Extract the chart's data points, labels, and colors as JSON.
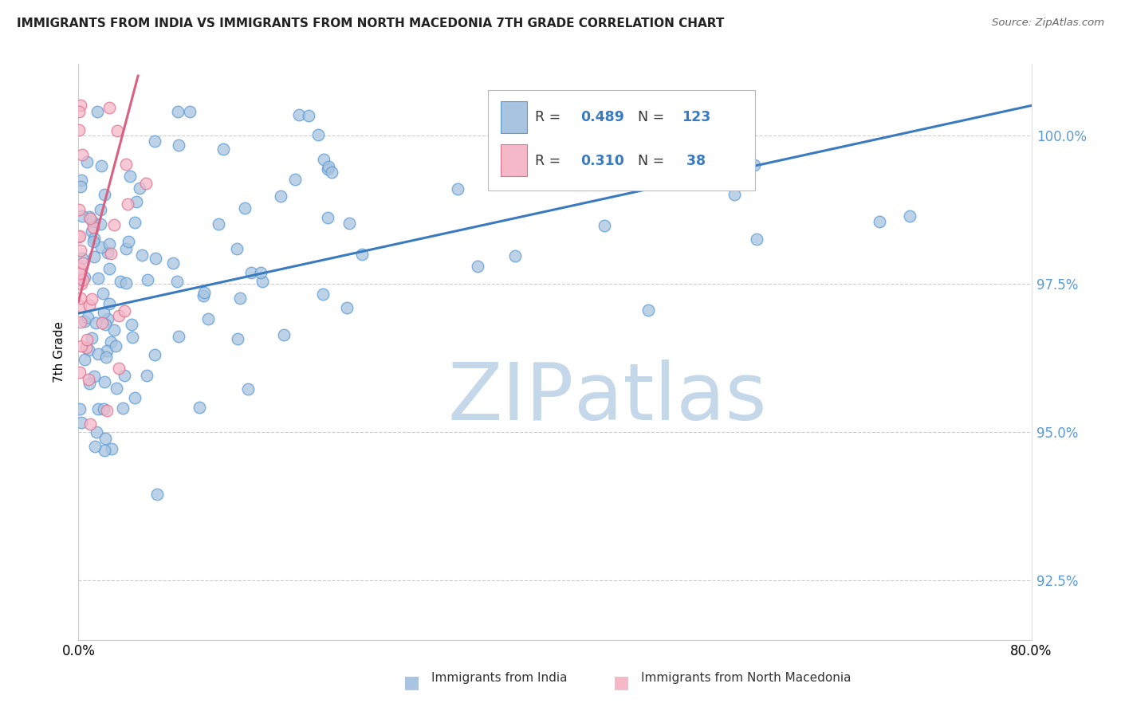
{
  "title": "IMMIGRANTS FROM INDIA VS IMMIGRANTS FROM NORTH MACEDONIA 7TH GRADE CORRELATION CHART",
  "source": "Source: ZipAtlas.com",
  "ylabel": "7th Grade",
  "xlim": [
    0.0,
    80.0
  ],
  "ylim": [
    91.5,
    101.2
  ],
  "y_ticks": [
    92.5,
    95.0,
    97.5,
    100.0
  ],
  "color_blue": "#a8c4e0",
  "color_blue_edge": "#5b9bd5",
  "color_pink": "#f4b8c8",
  "color_pink_edge": "#e07090",
  "trendline_blue": "#3a7abf",
  "trendline_pink": "#d96080",
  "right_axis_color": "#5b9bd5",
  "watermark_zip_color": "#c5d8ea",
  "watermark_atlas_color": "#c5d8ea"
}
